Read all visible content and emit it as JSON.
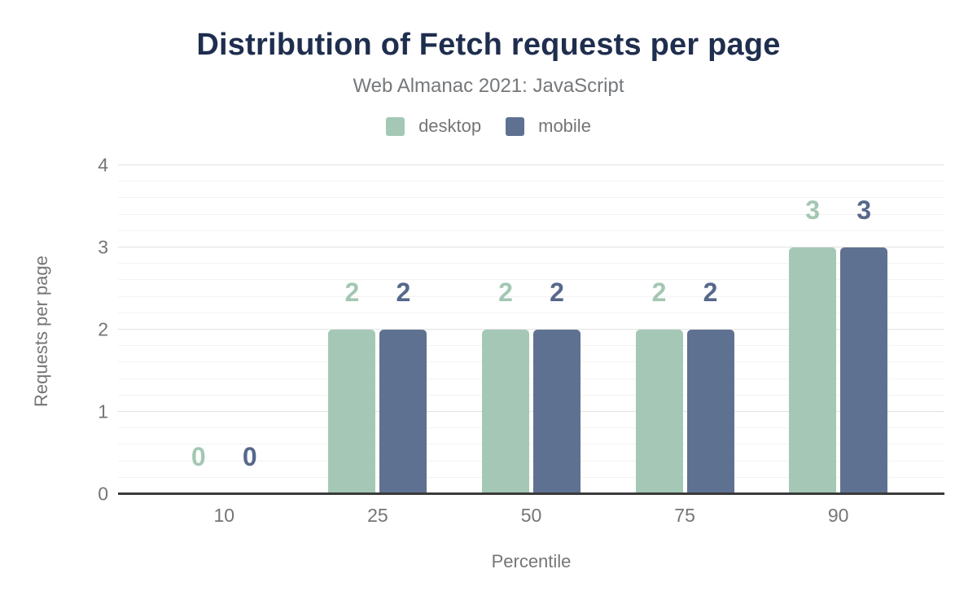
{
  "chart_data": {
    "type": "bar",
    "title": "Distribution of Fetch requests per page",
    "subtitle": "Web Almanac 2021: JavaScript",
    "xlabel": "Percentile",
    "ylabel": "Requests per page",
    "categories": [
      "10",
      "25",
      "50",
      "75",
      "90"
    ],
    "series": [
      {
        "name": "desktop",
        "color": "#a5c8b6",
        "label_color": "#a3c7b3",
        "values": [
          0,
          2,
          2,
          2,
          3
        ]
      },
      {
        "name": "mobile",
        "color": "#5f7191",
        "label_color": "#56688b",
        "values": [
          0,
          2,
          2,
          2,
          3
        ]
      }
    ],
    "ylim": [
      0,
      4
    ],
    "yticks": [
      0,
      1,
      2,
      3,
      4
    ],
    "minor_grid_step": 0.2,
    "grid": "on",
    "legend_position": "top",
    "show_data_labels": true
  },
  "colors": {
    "background": "#ffffff",
    "title": "#1f2e4e",
    "subtitle": "#75787b",
    "axis_text": "#757575",
    "gridline_major": "#e2e2e2",
    "gridline_minor": "#f3f3f3",
    "axis_line": "#3a3a3a"
  }
}
